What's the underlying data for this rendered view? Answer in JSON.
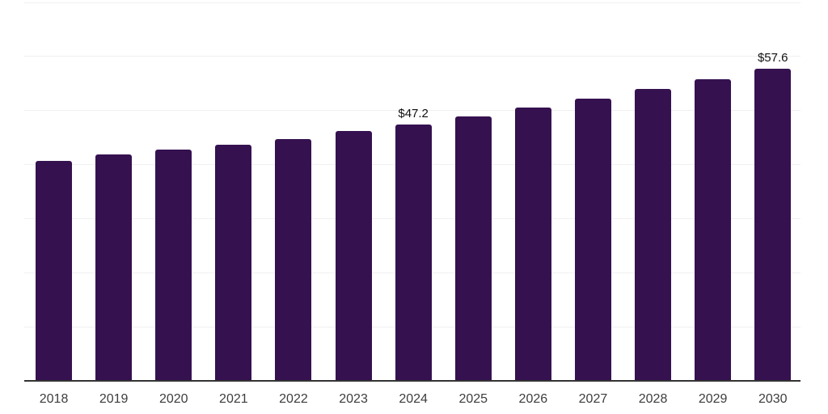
{
  "chart_data": {
    "type": "bar",
    "title": "",
    "xlabel": "",
    "ylabel": "",
    "categories": [
      "2018",
      "2019",
      "2020",
      "2021",
      "2022",
      "2023",
      "2024",
      "2025",
      "2026",
      "2027",
      "2028",
      "2029",
      "2030"
    ],
    "values": [
      40.6,
      41.7,
      42.6,
      43.5,
      44.6,
      46.0,
      47.2,
      48.8,
      50.4,
      52.1,
      53.8,
      55.7,
      57.6
    ],
    "value_unit_prefix": "$",
    "annotations": [
      {
        "category": "2024",
        "label": "$47.2"
      },
      {
        "category": "2030",
        "label": "$57.6"
      }
    ],
    "ylim": [
      0,
      70
    ],
    "grid_step": 10,
    "grid": true,
    "legend": "none",
    "colors": {
      "bar": "#351150",
      "axis": "#333333",
      "gridline": "#f0f0f0",
      "tick_label": "#3d3d3d",
      "data_label": "#111111",
      "background": "#ffffff"
    }
  }
}
